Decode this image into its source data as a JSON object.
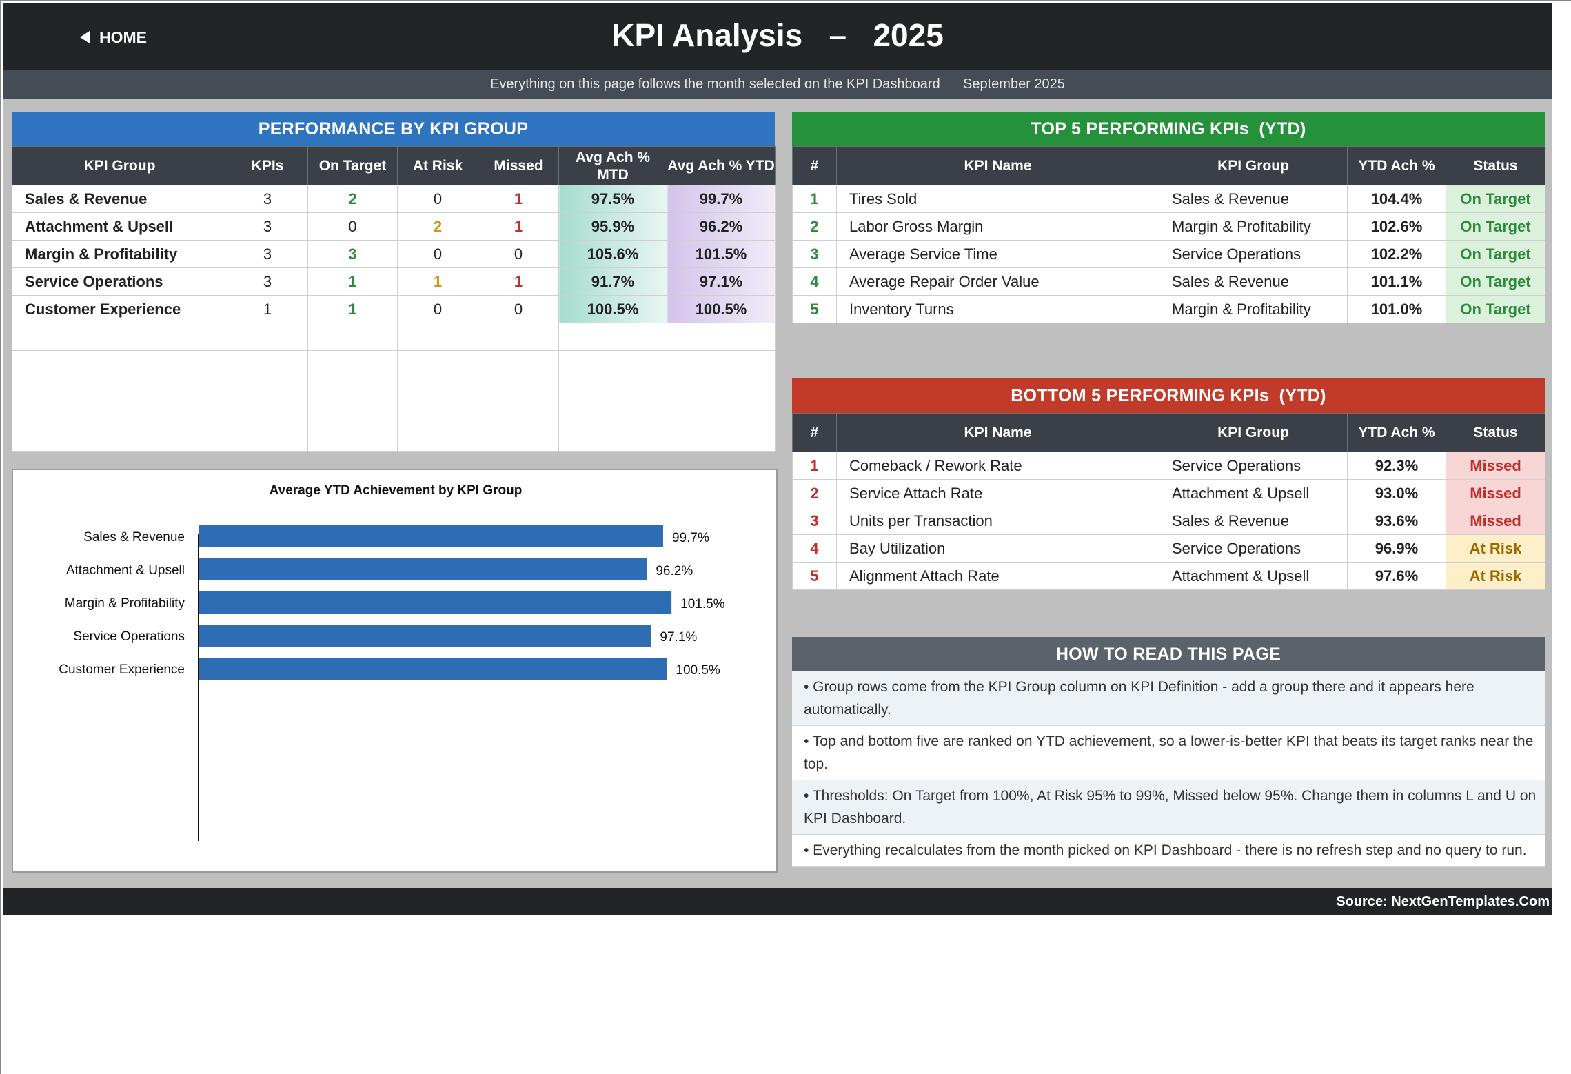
{
  "header": {
    "home_label": "HOME",
    "title": "KPI Analysis   –   2025",
    "subtitle": "Everything on this page follows the month selected on the KPI Dashboard      September 2025"
  },
  "colors": {
    "blue_header": "#2f74be",
    "green_header": "#26913b",
    "red_header": "#c23a2a",
    "gray_header": "#5a626c",
    "bar": "#2e6db3"
  },
  "group_panel": {
    "title": "PERFORMANCE BY KPI GROUP",
    "columns": [
      "KPI Group",
      "KPIs",
      "On Target",
      "At Risk",
      "Missed",
      "Avg Ach % MTD",
      "Avg Ach % YTD"
    ],
    "rows": [
      {
        "group": "Sales & Revenue",
        "kpis": "3",
        "on_target": "2",
        "at_risk": "0",
        "missed": "1",
        "mtd": "97.5%",
        "ytd": "99.7%"
      },
      {
        "group": "Attachment & Upsell",
        "kpis": "3",
        "on_target": "0",
        "at_risk": "2",
        "missed": "1",
        "mtd": "95.9%",
        "ytd": "96.2%"
      },
      {
        "group": "Margin & Profitability",
        "kpis": "3",
        "on_target": "3",
        "at_risk": "0",
        "missed": "0",
        "mtd": "105.6%",
        "ytd": "101.5%"
      },
      {
        "group": "Service Operations",
        "kpis": "3",
        "on_target": "1",
        "at_risk": "1",
        "missed": "1",
        "mtd": "91.7%",
        "ytd": "97.1%"
      },
      {
        "group": "Customer Experience",
        "kpis": "1",
        "on_target": "1",
        "at_risk": "0",
        "missed": "0",
        "mtd": "100.5%",
        "ytd": "100.5%"
      }
    ]
  },
  "top5": {
    "title": "TOP 5 PERFORMING KPIs  (YTD)",
    "columns": [
      "#",
      "KPI Name",
      "KPI Group",
      "YTD Ach %",
      "Status"
    ],
    "rows": [
      {
        "rank": "1",
        "name": "Tires Sold",
        "group": "Sales & Revenue",
        "ytd": "104.4%",
        "status": "On Target"
      },
      {
        "rank": "2",
        "name": "Labor Gross Margin",
        "group": "Margin & Profitability",
        "ytd": "102.6%",
        "status": "On Target"
      },
      {
        "rank": "3",
        "name": "Average Service Time",
        "group": "Service Operations",
        "ytd": "102.2%",
        "status": "On Target"
      },
      {
        "rank": "4",
        "name": "Average Repair Order Value",
        "group": "Sales & Revenue",
        "ytd": "101.1%",
        "status": "On Target"
      },
      {
        "rank": "5",
        "name": "Inventory Turns",
        "group": "Margin & Profitability",
        "ytd": "101.0%",
        "status": "On Target"
      }
    ]
  },
  "bottom5": {
    "title": "BOTTOM 5 PERFORMING KPIs  (YTD)",
    "columns": [
      "#",
      "KPI Name",
      "KPI Group",
      "YTD Ach %",
      "Status"
    ],
    "rows": [
      {
        "rank": "1",
        "name": "Comeback / Rework Rate",
        "group": "Service Operations",
        "ytd": "92.3%",
        "status": "Missed"
      },
      {
        "rank": "2",
        "name": "Service Attach Rate",
        "group": "Attachment & Upsell",
        "ytd": "93.0%",
        "status": "Missed"
      },
      {
        "rank": "3",
        "name": "Units per Transaction",
        "group": "Sales & Revenue",
        "ytd": "93.6%",
        "status": "Missed"
      },
      {
        "rank": "4",
        "name": "Bay Utilization",
        "group": "Service Operations",
        "ytd": "96.9%",
        "status": "At Risk"
      },
      {
        "rank": "5",
        "name": "Alignment Attach Rate",
        "group": "Attachment & Upsell",
        "ytd": "97.6%",
        "status": "At Risk"
      }
    ]
  },
  "howto": {
    "title": "HOW TO READ THIS PAGE",
    "items": [
      "•  Group rows come from the KPI Group column on KPI Definition - add a group there and it appears here automatically.",
      "•  Top and bottom five are ranked on YTD achievement, so a lower-is-better KPI that beats its target ranks near the top.",
      "•  Thresholds: On Target from 100%, At Risk 95% to 99%, Missed below 95%. Change them in columns L and U on KPI Dashboard.",
      "•  Everything recalculates from the month picked on KPI Dashboard - there is no refresh step and no query to run."
    ]
  },
  "chart_data": {
    "type": "bar",
    "orientation": "horizontal",
    "title": "Average YTD Achievement by KPI Group",
    "categories": [
      "Sales & Revenue",
      "Attachment & Upsell",
      "Margin & Profitability",
      "Service Operations",
      "Customer Experience"
    ],
    "values": [
      99.7,
      96.2,
      101.5,
      97.1,
      100.5
    ],
    "value_labels": [
      "99.7%",
      "96.2%",
      "101.5%",
      "97.1%",
      "100.5%"
    ],
    "xlim": [
      0,
      120
    ],
    "grid": false,
    "legend": "none"
  },
  "footer": {
    "source": "Source: NextGenTemplates.Com"
  }
}
